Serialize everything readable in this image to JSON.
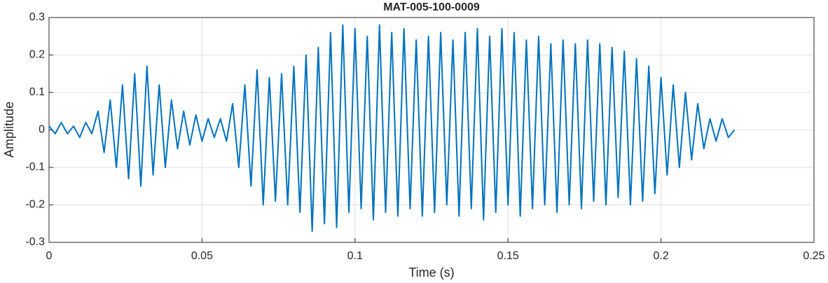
{
  "chart_data": {
    "type": "line",
    "title": "MAT-005-100-0009",
    "x_label": "Time (s)",
    "y_label": "Amplitude",
    "x": [
      0,
      0.002,
      0.004,
      0.006,
      0.008,
      0.01,
      0.012,
      0.014,
      0.016,
      0.018,
      0.02,
      0.022,
      0.024,
      0.026,
      0.028,
      0.03,
      0.032,
      0.034,
      0.036,
      0.038,
      0.04,
      0.042,
      0.044,
      0.046,
      0.048,
      0.05,
      0.052,
      0.054,
      0.056,
      0.058,
      0.06,
      0.062,
      0.064,
      0.066,
      0.068,
      0.07,
      0.072,
      0.074,
      0.076,
      0.078,
      0.08,
      0.082,
      0.084,
      0.086,
      0.088,
      0.09,
      0.092,
      0.094,
      0.096,
      0.098,
      0.1,
      0.102,
      0.104,
      0.106,
      0.108,
      0.11,
      0.112,
      0.114,
      0.116,
      0.118,
      0.12,
      0.122,
      0.124,
      0.126,
      0.128,
      0.13,
      0.132,
      0.134,
      0.136,
      0.138,
      0.14,
      0.142,
      0.144,
      0.146,
      0.148,
      0.15,
      0.152,
      0.154,
      0.156,
      0.158,
      0.16,
      0.162,
      0.164,
      0.166,
      0.168,
      0.17,
      0.172,
      0.174,
      0.176,
      0.178,
      0.18,
      0.182,
      0.184,
      0.186,
      0.188,
      0.19,
      0.192,
      0.194,
      0.196,
      0.198,
      0.2,
      0.202,
      0.204,
      0.206,
      0.208,
      0.21,
      0.212,
      0.214,
      0.216,
      0.218,
      0.22,
      0.222,
      0.224
    ],
    "values": [
      0.01,
      -0.01,
      0.02,
      -0.01,
      0.01,
      -0.02,
      0.02,
      -0.01,
      0.05,
      -0.06,
      0.08,
      -0.1,
      0.12,
      -0.13,
      0.15,
      -0.15,
      0.17,
      -0.12,
      0.12,
      -0.1,
      0.08,
      -0.05,
      0.05,
      -0.04,
      0.04,
      -0.03,
      0.03,
      -0.02,
      0.03,
      -0.03,
      0.07,
      -0.1,
      0.12,
      -0.15,
      0.16,
      -0.2,
      0.14,
      -0.19,
      0.15,
      -0.2,
      0.17,
      -0.22,
      0.2,
      -0.27,
      0.22,
      -0.25,
      0.26,
      -0.26,
      0.28,
      -0.22,
      0.27,
      -0.21,
      0.25,
      -0.24,
      0.28,
      -0.22,
      0.26,
      -0.23,
      0.27,
      -0.21,
      0.24,
      -0.23,
      0.25,
      -0.22,
      0.26,
      -0.2,
      0.24,
      -0.23,
      0.26,
      -0.21,
      0.27,
      -0.24,
      0.25,
      -0.22,
      0.27,
      -0.2,
      0.26,
      -0.23,
      0.24,
      -0.21,
      0.25,
      -0.2,
      0.23,
      -0.22,
      0.24,
      -0.2,
      0.23,
      -0.21,
      0.24,
      -0.19,
      0.23,
      -0.2,
      0.22,
      -0.18,
      0.21,
      -0.2,
      0.19,
      -0.19,
      0.17,
      -0.17,
      0.14,
      -0.12,
      0.12,
      -0.1,
      0.1,
      -0.08,
      0.07,
      -0.05,
      0.03,
      -0.03,
      0.03,
      -0.02,
      0.0
    ],
    "color": "#0072BD",
    "xlim": [
      0,
      0.25
    ],
    "xticks": [
      0,
      0.05,
      0.1,
      0.15,
      0.2,
      0.25
    ],
    "ylim": [
      -0.3,
      0.3
    ],
    "yticks": [
      -0.3,
      -0.2,
      -0.1,
      0,
      0.1,
      0.2,
      0.3
    ],
    "grid": true
  }
}
